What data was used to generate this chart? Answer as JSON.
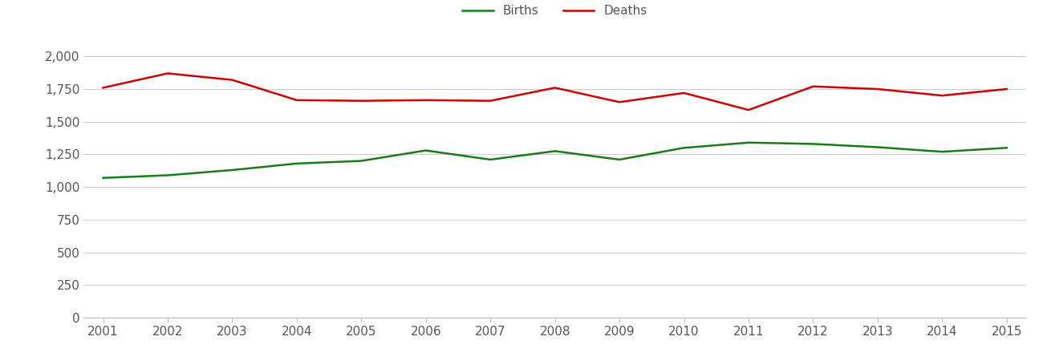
{
  "years": [
    2001,
    2002,
    2003,
    2004,
    2005,
    2006,
    2007,
    2008,
    2009,
    2010,
    2011,
    2012,
    2013,
    2014,
    2015
  ],
  "births": [
    1070,
    1090,
    1130,
    1180,
    1200,
    1280,
    1210,
    1275,
    1210,
    1300,
    1340,
    1330,
    1305,
    1270,
    1300
  ],
  "deaths": [
    1760,
    1870,
    1820,
    1665,
    1660,
    1665,
    1660,
    1760,
    1650,
    1720,
    1590,
    1770,
    1750,
    1700,
    1750
  ],
  "births_color": "#1a7a1a",
  "deaths_color": "#cc0000",
  "line_width": 1.8,
  "ylim": [
    0,
    2100
  ],
  "yticks": [
    0,
    250,
    500,
    750,
    1000,
    1250,
    1500,
    1750,
    2000
  ],
  "legend_labels": [
    "Births",
    "Deaths"
  ],
  "background_color": "#ffffff",
  "grid_color": "#cccccc",
  "tick_label_color": "#555555",
  "tick_label_fontsize": 11
}
